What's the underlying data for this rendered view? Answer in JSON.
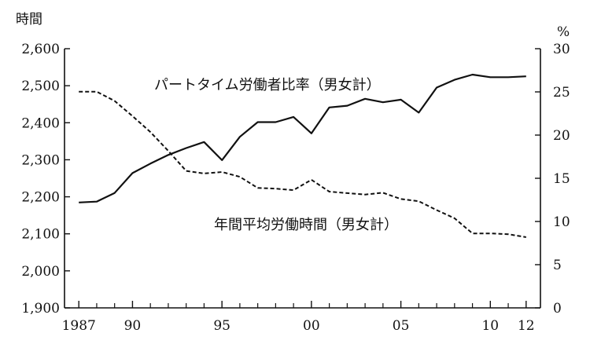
{
  "chart_data": {
    "type": "line",
    "title": "",
    "left_axis": {
      "unit": "時間",
      "ylim": [
        1900,
        2600
      ],
      "ticks": [
        1900,
        2000,
        2100,
        2200,
        2300,
        2400,
        2500,
        2600
      ],
      "tick_labels": [
        "1,900",
        "2,000",
        "2,100",
        "2,200",
        "2,300",
        "2,400",
        "2,500",
        "2,600"
      ]
    },
    "right_axis": {
      "unit": "%",
      "ylim": [
        0,
        30
      ],
      "ticks": [
        0,
        5,
        10,
        15,
        20,
        25,
        30
      ],
      "tick_labels": [
        "0",
        "5",
        "10",
        "15",
        "20",
        "25",
        "30"
      ]
    },
    "x_axis": {
      "xlim": [
        1986.2,
        2012.8
      ],
      "ticks": [
        1987,
        1990,
        1995,
        2000,
        2005,
        2010,
        2012
      ],
      "tick_labels": [
        "1987",
        "90",
        "95",
        "00",
        "05",
        "10",
        "12"
      ],
      "minor_ticks": [
        1988,
        1989,
        1991,
        1992,
        1993,
        1994,
        1996,
        1997,
        1998,
        1999,
        2001,
        2002,
        2003,
        2004,
        2006,
        2007,
        2008,
        2009,
        2011
      ]
    },
    "series": [
      {
        "name": "パートタイム労働者比率（男女計）",
        "axis": "right",
        "style": "solid",
        "x": [
          1987,
          1988,
          1989,
          1990,
          1991,
          1992,
          1993,
          1994,
          1995,
          1996,
          1997,
          1998,
          1999,
          2000,
          2001,
          2002,
          2003,
          2004,
          2005,
          2006,
          2007,
          2008,
          2009,
          2010,
          2011,
          2012
        ],
        "values": [
          12.2,
          12.3,
          13.3,
          15.6,
          16.7,
          17.7,
          18.5,
          19.2,
          17.1,
          19.8,
          21.5,
          21.5,
          22.1,
          20.2,
          23.2,
          23.4,
          24.2,
          23.8,
          24.1,
          22.6,
          25.5,
          26.4,
          27.0,
          26.7,
          26.7,
          26.8
        ]
      },
      {
        "name": "年間平均労働時間（男女計）",
        "axis": "left",
        "style": "dashed",
        "x": [
          1987,
          1988,
          1989,
          1990,
          1991,
          1992,
          1993,
          1994,
          1995,
          1996,
          1997,
          1998,
          1999,
          2000,
          2001,
          2002,
          2003,
          2004,
          2005,
          2006,
          2007,
          2008,
          2009,
          2010,
          2011,
          2012
        ],
        "values": [
          2484,
          2484,
          2459,
          2418,
          2375,
          2324,
          2270,
          2263,
          2267,
          2254,
          2224,
          2222,
          2218,
          2246,
          2214,
          2210,
          2206,
          2211,
          2194,
          2188,
          2164,
          2142,
          2101,
          2101,
          2099,
          2091
        ]
      }
    ]
  }
}
